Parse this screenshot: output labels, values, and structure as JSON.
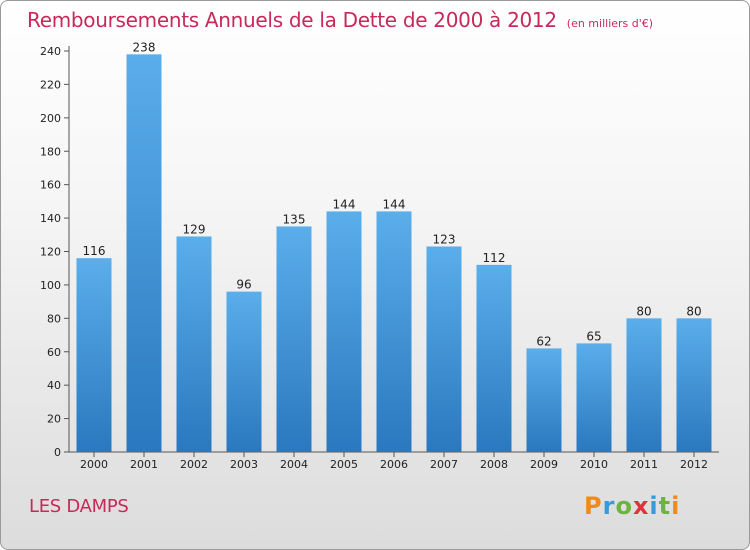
{
  "chart_data": {
    "type": "bar",
    "title": "Remboursements Annuels de la Dette de 2000 à 2012",
    "subtitle": "(en milliers d'€)",
    "categories": [
      "2000",
      "2001",
      "2002",
      "2003",
      "2004",
      "2005",
      "2006",
      "2007",
      "2008",
      "2009",
      "2010",
      "2011",
      "2012"
    ],
    "values": [
      116,
      238,
      129,
      96,
      135,
      144,
      144,
      123,
      112,
      62,
      65,
      80,
      80
    ],
    "ylim": [
      0,
      240
    ],
    "yticks": [
      0,
      20,
      40,
      60,
      80,
      100,
      120,
      140,
      160,
      180,
      200,
      220,
      240
    ],
    "xlabel": "",
    "ylabel": "",
    "grid": false,
    "bar_color": "#3f95d8"
  },
  "footer": {
    "place": "LES DAMPS",
    "brand": "Proxiti"
  },
  "colors": {
    "title": "#c8285a",
    "brand_letters": [
      "#f08a1c",
      "#3a9ad9",
      "#6cb33f",
      "#e0343c",
      "#3a9ad9",
      "#6cb33f",
      "#f08a1c"
    ]
  }
}
